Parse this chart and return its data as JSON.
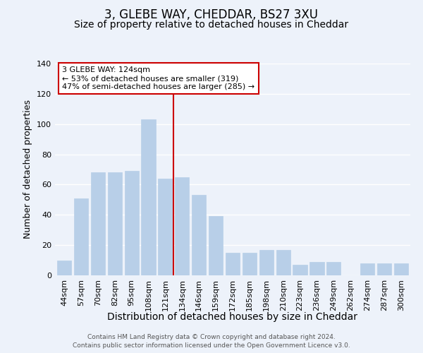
{
  "title": "3, GLEBE WAY, CHEDDAR, BS27 3XU",
  "subtitle": "Size of property relative to detached houses in Cheddar",
  "xlabel": "Distribution of detached houses by size in Cheddar",
  "ylabel": "Number of detached properties",
  "categories": [
    "44sqm",
    "57sqm",
    "70sqm",
    "82sqm",
    "95sqm",
    "108sqm",
    "121sqm",
    "134sqm",
    "146sqm",
    "159sqm",
    "172sqm",
    "185sqm",
    "198sqm",
    "210sqm",
    "223sqm",
    "236sqm",
    "249sqm",
    "262sqm",
    "274sqm",
    "287sqm",
    "300sqm"
  ],
  "values": [
    10,
    51,
    68,
    68,
    69,
    103,
    64,
    65,
    53,
    39,
    15,
    15,
    17,
    17,
    7,
    9,
    9,
    0,
    8,
    8,
    8
  ],
  "bar_color": "#b8cfe8",
  "bar_edge_color": "#b8cfe8",
  "background_color": "#edf2fa",
  "grid_color": "#ffffff",
  "vline_color": "#cc0000",
  "annotation_title": "3 GLEBE WAY: 124sqm",
  "annotation_line1": "← 53% of detached houses are smaller (319)",
  "annotation_line2": "47% of semi-detached houses are larger (285) →",
  "annotation_box_color": "#ffffff",
  "annotation_box_edge": "#cc0000",
  "footer1": "Contains HM Land Registry data © Crown copyright and database right 2024.",
  "footer2": "Contains public sector information licensed under the Open Government Licence v3.0.",
  "ylim": [
    0,
    140
  ],
  "yticks": [
    0,
    20,
    40,
    60,
    80,
    100,
    120,
    140
  ],
  "title_fontsize": 12,
  "subtitle_fontsize": 10,
  "xlabel_fontsize": 10,
  "ylabel_fontsize": 9,
  "tick_fontsize": 8,
  "footer_fontsize": 6.5,
  "annotation_fontsize": 8
}
